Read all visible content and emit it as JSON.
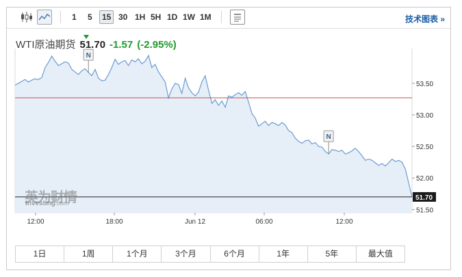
{
  "toolbar": {
    "intervals": [
      "1",
      "5",
      "15",
      "30",
      "1H",
      "5H",
      "1D",
      "1W",
      "1M"
    ],
    "active_interval": "15",
    "tech_link": "技术图表 »"
  },
  "quote": {
    "name": "WTI原油期货",
    "price": "51.70",
    "change": "-1.57",
    "change_pct": "(-2.95%)",
    "change_color": "#1f9a2e"
  },
  "watermark": {
    "brand_cn": "英为财情",
    "brand_en": "Investing",
    "brand_suffix": ".com"
  },
  "ranges": [
    "1日",
    "1周",
    "1个月",
    "3个月",
    "6个月",
    "1年",
    "5年",
    "最大值"
  ],
  "chart_data": {
    "type": "area",
    "x_ticks": [
      "12:00",
      "18:00",
      "Jun 12",
      "06:00",
      "12:00"
    ],
    "y_ticks": [
      "53.50",
      "53.00",
      "52.50",
      "52.00",
      "51.50"
    ],
    "ylim": [
      51.45,
      54.05
    ],
    "last_price": 51.7,
    "last_label": "51.70",
    "reference_line": 53.27,
    "line_color": "#6b9bd1",
    "fill_color": "#e6eff8",
    "markers": [
      {
        "label": "N",
        "index": 22
      },
      {
        "label": "N",
        "index": 94
      }
    ],
    "values": [
      53.47,
      53.5,
      53.53,
      53.56,
      53.52,
      53.55,
      53.57,
      53.56,
      53.59,
      53.75,
      53.83,
      53.93,
      53.85,
      53.78,
      53.81,
      53.84,
      53.82,
      53.72,
      53.68,
      53.64,
      53.7,
      53.73,
      53.67,
      53.62,
      53.72,
      53.58,
      53.54,
      53.55,
      53.64,
      53.75,
      53.88,
      53.8,
      53.84,
      53.86,
      53.78,
      53.87,
      53.84,
      53.89,
      53.81,
      53.85,
      53.94,
      53.75,
      53.8,
      53.68,
      53.6,
      53.52,
      53.27,
      53.41,
      53.5,
      53.48,
      53.34,
      53.58,
      53.43,
      53.35,
      53.3,
      53.36,
      53.52,
      53.62,
      53.39,
      53.18,
      53.24,
      53.15,
      53.22,
      53.12,
      53.3,
      53.28,
      53.32,
      53.35,
      53.31,
      53.37,
      53.2,
      53.02,
      52.95,
      52.82,
      52.86,
      52.9,
      52.83,
      52.88,
      52.86,
      52.83,
      52.88,
      52.84,
      52.75,
      52.72,
      52.63,
      52.58,
      52.55,
      52.59,
      52.6,
      52.54,
      52.56,
      52.5,
      52.49,
      52.42,
      52.38,
      52.45,
      52.44,
      52.42,
      52.44,
      52.38,
      52.4,
      52.43,
      52.47,
      52.42,
      52.35,
      52.28,
      52.3,
      52.28,
      52.24,
      52.2,
      52.23,
      52.19,
      52.24,
      52.3,
      52.26,
      52.28,
      52.25,
      52.14,
      51.92,
      51.7
    ]
  }
}
